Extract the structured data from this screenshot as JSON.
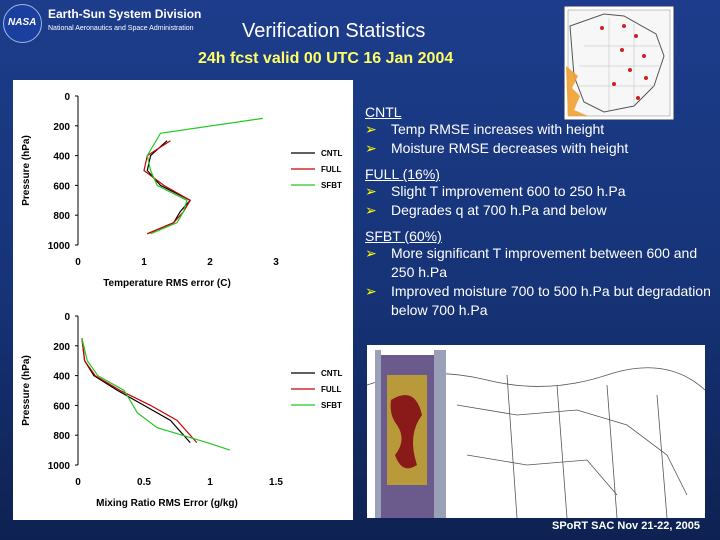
{
  "header": {
    "logo_text": "NASA",
    "division": "Earth-Sun System Division",
    "agency": "National Aeronautics and Space Administration",
    "title": "Verification Statistics",
    "subtitle": "24h fcst valid 00 UTC 16 Jan 2004"
  },
  "bullets": {
    "sections": [
      {
        "heading": "CNTL",
        "items": [
          "Temp RMSE increases with height",
          "Moisture RMSE decreases with height"
        ]
      },
      {
        "heading": "FULL (16%)",
        "items": [
          "Slight T improvement 600 to 250 h.Pa",
          "Degrades q at 700 h.Pa and below"
        ]
      },
      {
        "heading": "SFBT (60%)",
        "items": [
          "More significant T improvement between 600 and 250 h.Pa",
          "Improved moisture 700 to 500 h.Pa but degradation below 700 h.Pa"
        ]
      }
    ]
  },
  "footer": "SPoRT SAC Nov 21-22, 2005",
  "colors": {
    "accent": "#ffff00",
    "cntl": "#000000",
    "full": "#cc0000",
    "sfbt": "#22c922"
  },
  "chart_data": [
    {
      "type": "line",
      "title": "",
      "xlabel": "Temperature RMS error (C)",
      "ylabel": "Pressure (hPa)",
      "xlim": [
        0,
        3
      ],
      "ylim": [
        1000,
        0
      ],
      "xticks": [
        "0",
        "1",
        "2",
        "3"
      ],
      "yticks": [
        "0",
        "200",
        "400",
        "600",
        "800",
        "1000"
      ],
      "legend_position": "right",
      "series": [
        {
          "name": "CNTL",
          "x": [
            1.05,
            1.45,
            1.55,
            1.7,
            1.25,
            1.05,
            1.1,
            1.35
          ],
          "y": [
            925,
            850,
            775,
            700,
            600,
            500,
            400,
            300
          ]
        },
        {
          "name": "FULL",
          "x": [
            1.05,
            1.45,
            1.6,
            1.7,
            1.3,
            1.0,
            1.05,
            1.4
          ],
          "y": [
            925,
            850,
            775,
            700,
            600,
            500,
            400,
            300
          ]
        },
        {
          "name": "SFBT",
          "x": [
            1.1,
            1.5,
            1.6,
            1.65,
            1.2,
            1.1,
            1.05,
            1.25,
            2.8
          ],
          "y": [
            925,
            850,
            775,
            700,
            600,
            500,
            400,
            250,
            150
          ]
        }
      ]
    },
    {
      "type": "line",
      "title": "",
      "xlabel": "Mixing Ratio RMS Error (g/kg)",
      "ylabel": "Pressure (hPa)",
      "xlim": [
        0,
        1.5
      ],
      "ylim": [
        1000,
        0
      ],
      "xticks": [
        "0",
        "0.5",
        "1",
        "1.5"
      ],
      "yticks": [
        "0",
        "200",
        "400",
        "600",
        "800",
        "1000"
      ],
      "legend_position": "right",
      "series": [
        {
          "name": "CNTL",
          "x": [
            0.03,
            0.05,
            0.12,
            0.3,
            0.5,
            0.7,
            0.85
          ],
          "y": [
            150,
            300,
            400,
            500,
            600,
            700,
            850
          ]
        },
        {
          "name": "FULL",
          "x": [
            0.03,
            0.05,
            0.13,
            0.32,
            0.55,
            0.75,
            0.9
          ],
          "y": [
            150,
            300,
            400,
            500,
            600,
            700,
            850
          ]
        },
        {
          "name": "SFBT",
          "x": [
            0.03,
            0.07,
            0.15,
            0.35,
            0.45,
            0.6,
            0.98,
            1.15
          ],
          "y": [
            150,
            300,
            400,
            500,
            650,
            750,
            850,
            900
          ]
        }
      ]
    }
  ]
}
